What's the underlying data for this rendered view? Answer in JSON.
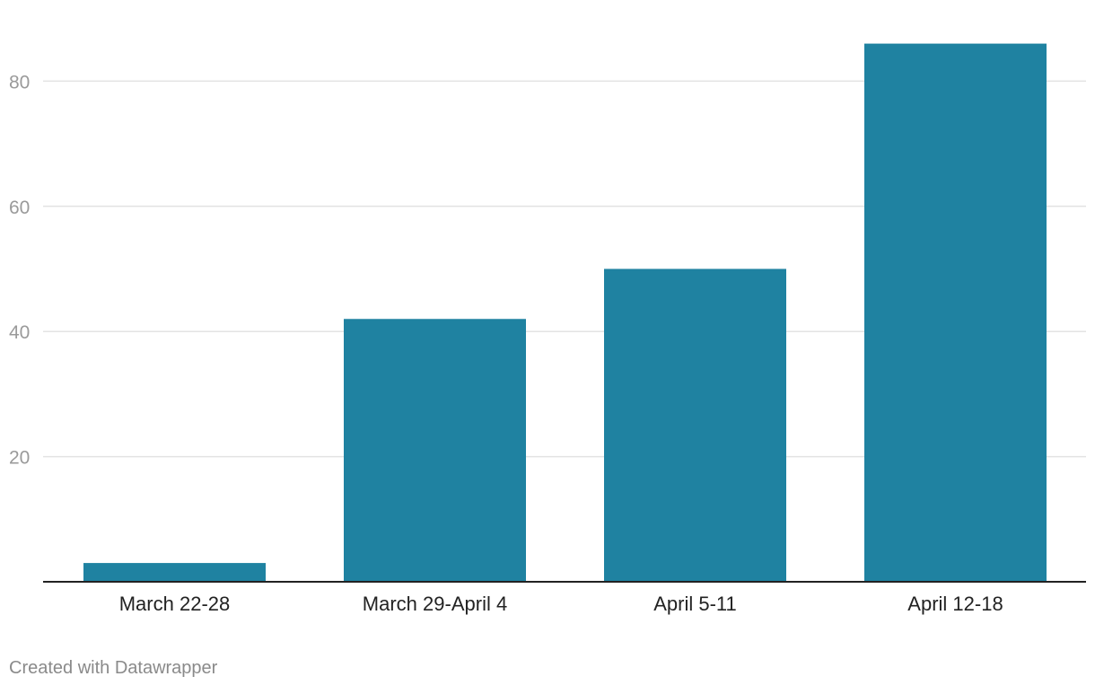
{
  "chart_data": {
    "type": "bar",
    "title": "",
    "xlabel": "",
    "ylabel": "",
    "categories": [
      "March 22-28",
      "March 29-April 4",
      "April 5-11",
      "April 12-18"
    ],
    "values": [
      3,
      42,
      50,
      86
    ],
    "ylim": [
      0,
      86
    ],
    "yticks": [
      20,
      40,
      60,
      80
    ],
    "ytick_labels": [
      "20",
      "40",
      "60",
      "80"
    ],
    "grid": true,
    "legend": "none",
    "bar_color": "#1f82a1"
  },
  "credit": "Created with Datawrapper",
  "colors": {
    "bar": "#1f82a1",
    "gridline": "#e3e3e3",
    "baseline": "#222222",
    "tick_label": "#9a9a9a",
    "category_label": "#222222",
    "credit": "#8a8a8a"
  }
}
